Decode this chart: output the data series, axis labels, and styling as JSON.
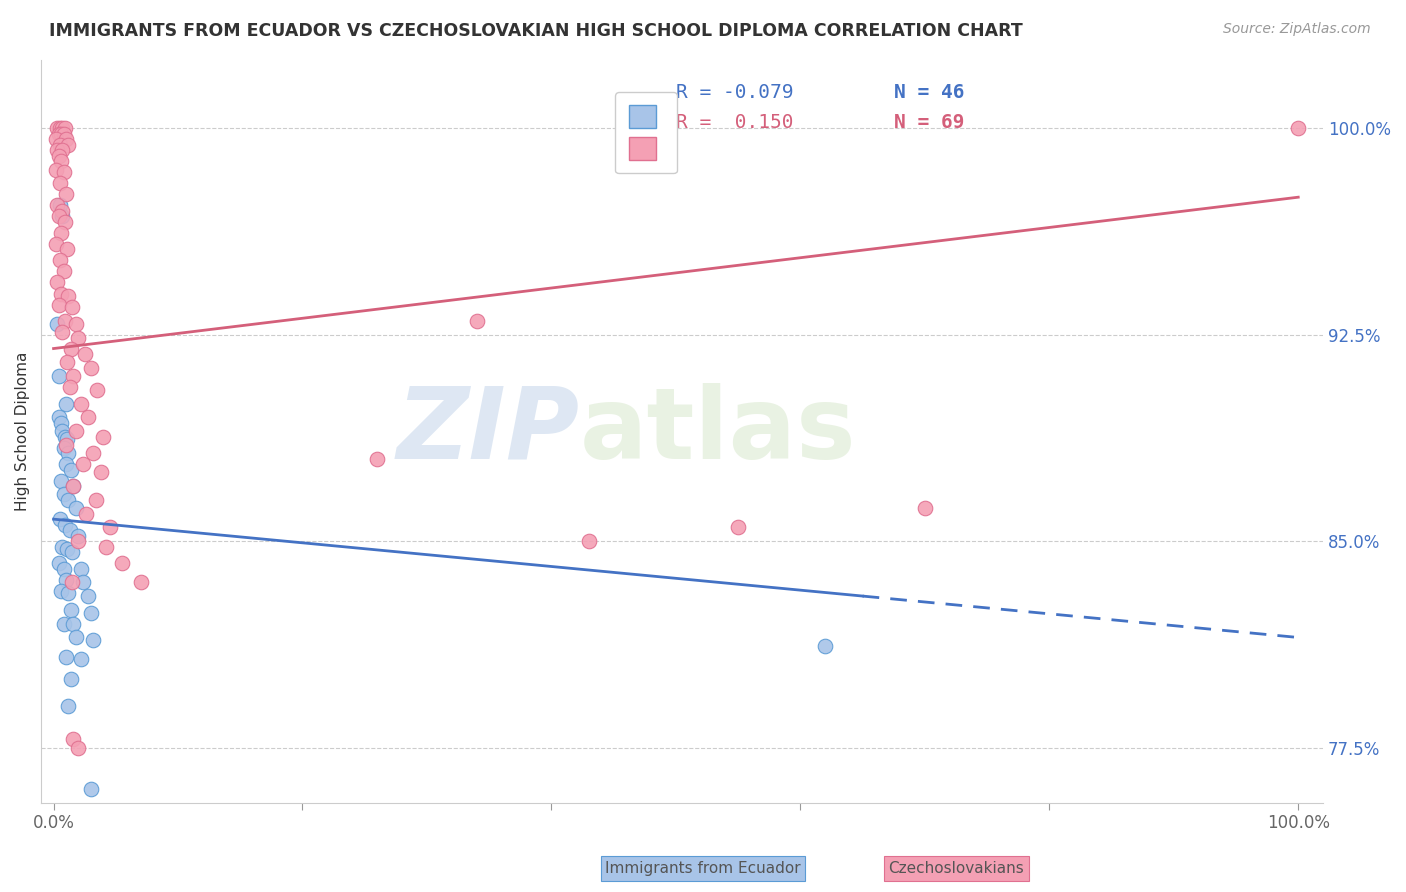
{
  "title": "IMMIGRANTS FROM ECUADOR VS CZECHOSLOVAKIAN HIGH SCHOOL DIPLOMA CORRELATION CHART",
  "source": "Source: ZipAtlas.com",
  "ylabel": "High School Diploma",
  "ytick_labels": [
    "77.5%",
    "85.0%",
    "92.5%",
    "100.0%"
  ],
  "ytick_values": [
    0.775,
    0.85,
    0.925,
    1.0
  ],
  "watermark_zip": "ZIP",
  "watermark_atlas": "atlas",
  "blue_scatter_color": "#a8c4e8",
  "blue_edge_color": "#5b9bd5",
  "pink_scatter_color": "#f4a0b4",
  "pink_edge_color": "#e07090",
  "blue_line_color": "#4472c4",
  "pink_line_color": "#d45f7a",
  "blue_R": "-0.079",
  "blue_N": "46",
  "pink_R": "0.150",
  "pink_N": "69",
  "label_ecuador": "Immigrants from Ecuador",
  "label_czech": "Czechoslovakians",
  "blue_trend": [
    0.0,
    0.858,
    1.0,
    0.815
  ],
  "pink_trend": [
    0.0,
    0.92,
    1.0,
    0.975
  ],
  "ecuador_points": [
    [
      0.003,
      0.929
    ],
    [
      0.005,
      0.972
    ],
    [
      0.007,
      0.968
    ],
    [
      0.004,
      0.91
    ],
    [
      0.01,
      0.9
    ],
    [
      0.004,
      0.895
    ],
    [
      0.006,
      0.893
    ],
    [
      0.007,
      0.89
    ],
    [
      0.009,
      0.888
    ],
    [
      0.011,
      0.887
    ],
    [
      0.008,
      0.884
    ],
    [
      0.012,
      0.882
    ],
    [
      0.01,
      0.878
    ],
    [
      0.014,
      0.876
    ],
    [
      0.006,
      0.872
    ],
    [
      0.016,
      0.87
    ],
    [
      0.008,
      0.867
    ],
    [
      0.012,
      0.865
    ],
    [
      0.018,
      0.862
    ],
    [
      0.005,
      0.858
    ],
    [
      0.009,
      0.856
    ],
    [
      0.013,
      0.854
    ],
    [
      0.02,
      0.852
    ],
    [
      0.007,
      0.848
    ],
    [
      0.011,
      0.847
    ],
    [
      0.015,
      0.846
    ],
    [
      0.004,
      0.842
    ],
    [
      0.008,
      0.84
    ],
    [
      0.022,
      0.84
    ],
    [
      0.01,
      0.836
    ],
    [
      0.024,
      0.835
    ],
    [
      0.006,
      0.832
    ],
    [
      0.012,
      0.831
    ],
    [
      0.028,
      0.83
    ],
    [
      0.014,
      0.825
    ],
    [
      0.03,
      0.824
    ],
    [
      0.008,
      0.82
    ],
    [
      0.016,
      0.82
    ],
    [
      0.018,
      0.815
    ],
    [
      0.032,
      0.814
    ],
    [
      0.01,
      0.808
    ],
    [
      0.022,
      0.807
    ],
    [
      0.014,
      0.8
    ],
    [
      0.012,
      0.79
    ],
    [
      0.03,
      0.76
    ],
    [
      0.62,
      0.812
    ]
  ],
  "czech_points": [
    [
      0.003,
      1.0
    ],
    [
      0.005,
      1.0
    ],
    [
      0.007,
      1.0
    ],
    [
      0.009,
      1.0
    ],
    [
      0.004,
      0.998
    ],
    [
      0.006,
      0.998
    ],
    [
      0.008,
      0.998
    ],
    [
      0.002,
      0.996
    ],
    [
      0.01,
      0.996
    ],
    [
      0.005,
      0.994
    ],
    [
      0.012,
      0.994
    ],
    [
      0.003,
      0.992
    ],
    [
      0.007,
      0.992
    ],
    [
      0.004,
      0.99
    ],
    [
      0.006,
      0.988
    ],
    [
      0.002,
      0.985
    ],
    [
      0.008,
      0.984
    ],
    [
      0.005,
      0.98
    ],
    [
      0.01,
      0.976
    ],
    [
      0.003,
      0.972
    ],
    [
      0.007,
      0.97
    ],
    [
      0.004,
      0.968
    ],
    [
      0.009,
      0.966
    ],
    [
      0.006,
      0.962
    ],
    [
      0.002,
      0.958
    ],
    [
      0.011,
      0.956
    ],
    [
      0.005,
      0.952
    ],
    [
      0.008,
      0.948
    ],
    [
      0.003,
      0.944
    ],
    [
      0.006,
      0.94
    ],
    [
      0.012,
      0.939
    ],
    [
      0.004,
      0.936
    ],
    [
      0.015,
      0.935
    ],
    [
      0.009,
      0.93
    ],
    [
      0.018,
      0.929
    ],
    [
      0.007,
      0.926
    ],
    [
      0.02,
      0.924
    ],
    [
      0.014,
      0.92
    ],
    [
      0.025,
      0.918
    ],
    [
      0.011,
      0.915
    ],
    [
      0.03,
      0.913
    ],
    [
      0.016,
      0.91
    ],
    [
      0.013,
      0.906
    ],
    [
      0.035,
      0.905
    ],
    [
      0.022,
      0.9
    ],
    [
      0.028,
      0.895
    ],
    [
      0.018,
      0.89
    ],
    [
      0.04,
      0.888
    ],
    [
      0.01,
      0.885
    ],
    [
      0.032,
      0.882
    ],
    [
      0.024,
      0.878
    ],
    [
      0.038,
      0.875
    ],
    [
      0.016,
      0.87
    ],
    [
      0.034,
      0.865
    ],
    [
      0.026,
      0.86
    ],
    [
      0.045,
      0.855
    ],
    [
      0.02,
      0.85
    ],
    [
      0.042,
      0.848
    ],
    [
      0.055,
      0.842
    ],
    [
      0.015,
      0.835
    ],
    [
      0.07,
      0.835
    ],
    [
      0.26,
      0.88
    ],
    [
      0.34,
      0.93
    ],
    [
      0.43,
      0.85
    ],
    [
      0.55,
      0.855
    ],
    [
      0.7,
      0.862
    ],
    [
      1.0,
      1.0
    ],
    [
      0.016,
      0.778
    ],
    [
      0.02,
      0.775
    ]
  ]
}
